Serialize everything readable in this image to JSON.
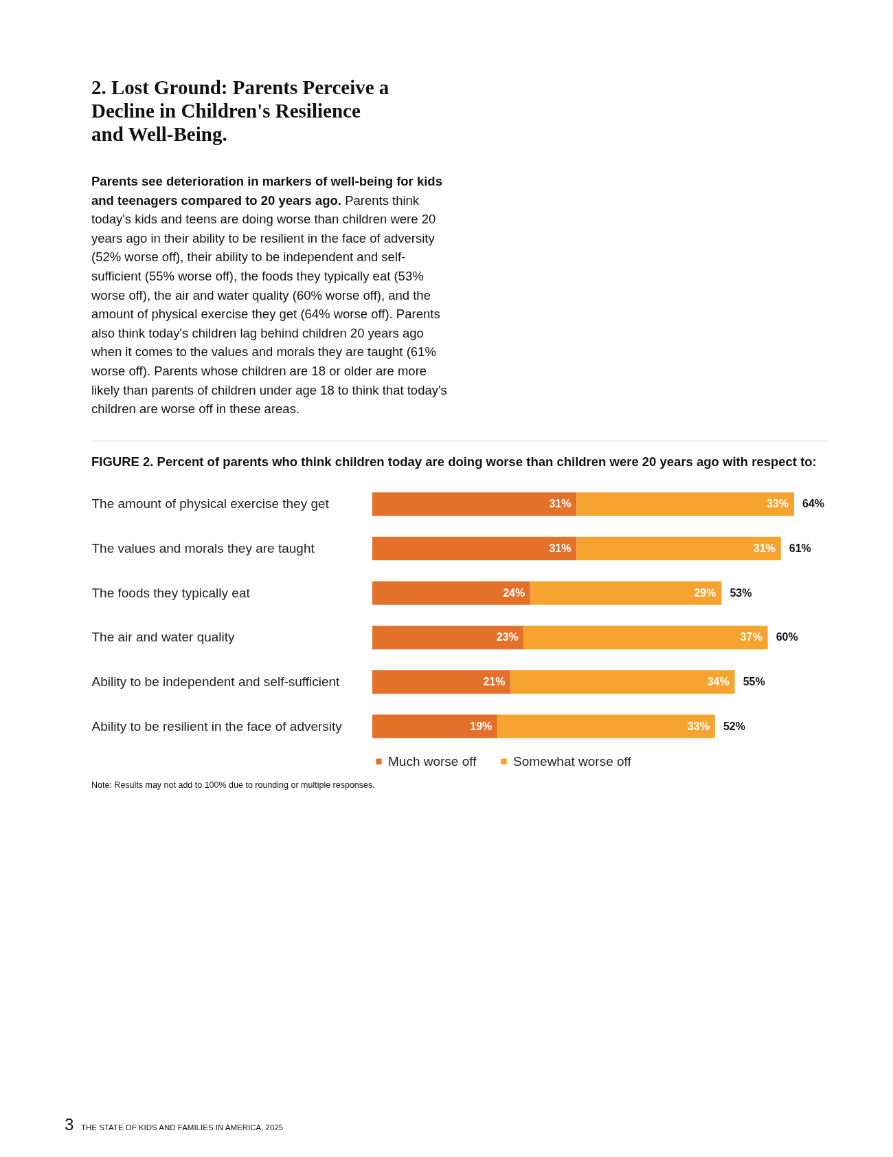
{
  "chart_data": {
    "type": "bar",
    "orientation": "horizontal",
    "stacked": true,
    "title": "2. Lost Ground: Parents Perceive a Decline in Children's Resilience and Well-Being.",
    "subtitle": "FIGURE 2. Percent of parents who think children today are doing worse than children were 20 years ago with respect to:",
    "categories": [
      "The amount of physical exercise they get",
      "The values and morals they are taught",
      "The foods they typically eat",
      "The air and water quality",
      "Ability to be independent and self-sufficient",
      "Ability to be resilient in the face of adversity"
    ],
    "series": [
      {
        "name": "Much worse off",
        "color": "#e5702a",
        "values": [
          31,
          31,
          24,
          23,
          21,
          19
        ],
        "value_labels": [
          "31%",
          "31%",
          "24%",
          "23%",
          "21%",
          "19%"
        ]
      },
      {
        "name": "Somewhat worse off",
        "color": "#f6a42f",
        "values": [
          33,
          31,
          29,
          37,
          34,
          33
        ],
        "value_labels": [
          "33%",
          "31%",
          "29%",
          "37%",
          "34%",
          "33%"
        ]
      }
    ],
    "totals": [
      "64%",
      "61%",
      "53%",
      "60%",
      "55%",
      "52%"
    ],
    "legend": "bottom",
    "annotations": [
      "Parents see deterioration in markers of well-being for kids and teenagers compared to 20 years ago.",
      "Parents think today's kids and teens are doing worse than children were 20 years ago in their ability to be resilient in the face of adversity (52% worse off), their ability to be independent and self-sufficient (55% worse off), the foods they typically eat (53% worse off), the air and water quality (60% worse off), and the amount of physical exercise they get (64% worse off). Parents also think today's children lag behind children 20 years ago when it comes to the values and morals they are taught (61% worse off). Parents whose children are 18 or older are more likely than parents of children under age 18 to think that today's children are worse off in these areas.",
      "Note: Results may not add to 100% due to rounding or multiple responses.",
      "3",
      "THE STATE OF KIDS AND FAMILIES IN AMERICA, 2025"
    ]
  }
}
